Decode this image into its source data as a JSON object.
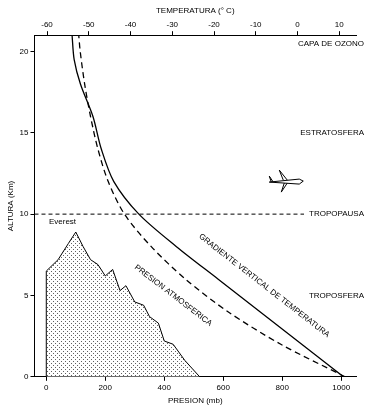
{
  "chart_data": {
    "type": "line",
    "x_label": "PRESION (mb)",
    "x2_label": "TEMPERATURA (° C)",
    "y_label": "ALTURA (Km)",
    "xlim": [
      -40,
      1050
    ],
    "xticks": [
      0,
      200,
      400,
      600,
      800,
      1000
    ],
    "x2lim": [
      -63,
      14
    ],
    "x2ticks": [
      -60,
      -50,
      -40,
      -30,
      -20,
      -10,
      0,
      10
    ],
    "ylim": [
      0,
      21
    ],
    "yticks": [
      0,
      5,
      10,
      15,
      20
    ],
    "grid": false,
    "series": [
      {
        "axis": "x2",
        "color": "#000000",
        "line_style": "solid",
        "x": [
          11,
          1,
          -9,
          -19,
          -29,
          -38,
          -44,
          -47,
          -49,
          -52,
          -53.5,
          -54
        ],
        "values": [
          0,
          2,
          4,
          6,
          8,
          10,
          12,
          14,
          16,
          18,
          19.5,
          21
        ]
      },
      {
        "color": "#000000",
        "line_style": "dashed",
        "x": [
          1013,
          795,
          616,
          472,
          356,
          265,
          210,
          175,
          150,
          130,
          115,
          110
        ],
        "values": [
          0,
          2,
          4,
          6,
          8,
          10,
          12,
          14,
          16,
          18,
          20,
          21
        ]
      },
      {
        "type": "area",
        "color": "#000000",
        "line_style": "solid",
        "x": [
          0,
          0,
          40,
          75,
          100,
          125,
          150,
          175,
          200,
          225,
          250,
          270,
          300,
          330,
          350,
          380,
          400,
          430,
          470,
          520
        ],
        "values": [
          0,
          6.5,
          7.2,
          8.2,
          8.9,
          8.0,
          7.2,
          6.9,
          6.2,
          6.6,
          5.3,
          5.6,
          4.6,
          4.4,
          3.7,
          3.3,
          2.2,
          2.0,
          1.0,
          0
        ]
      }
    ],
    "annotations": [
      {
        "text": "GRADIENTE VERTICAL DE TEMPERATURA",
        "axis": "x2",
        "x": -8,
        "y": 5.6
      },
      {
        "text": "PRESION ATMOSFERICA",
        "x": 430,
        "y": 5.0
      },
      {
        "text": "Everest",
        "x": 55,
        "y": 9.5
      }
    ],
    "layers": [
      {
        "text": "CAPA DE OZONO",
        "y": 20.5
      },
      {
        "text": "ESTRATOSFERA",
        "y": 15
      },
      {
        "text": "TROPOPAUSA",
        "y": 10,
        "line_style": "dashed"
      },
      {
        "text": "TROPOSFERA",
        "y": 5
      }
    ]
  }
}
